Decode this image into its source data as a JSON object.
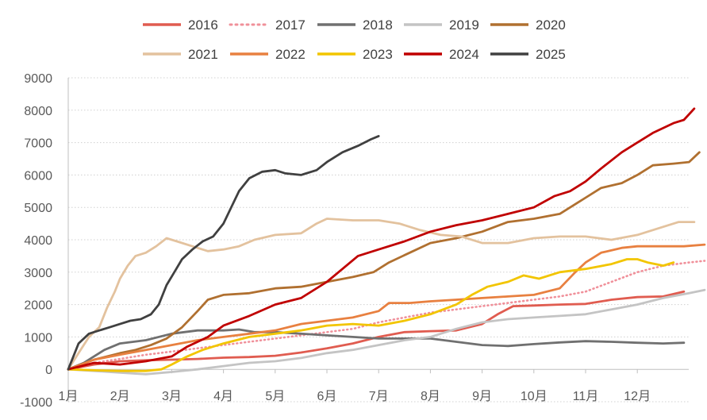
{
  "chart_data": {
    "type": "line",
    "title": "",
    "xlabel": "",
    "ylabel": "",
    "ylim": [
      -1000,
      9000
    ],
    "y_ticks": [
      -1000,
      0,
      1000,
      2000,
      3000,
      4000,
      5000,
      6000,
      7000,
      8000,
      9000
    ],
    "x_domain": [
      0,
      12.3
    ],
    "x_ticks": [
      {
        "v": 0,
        "label": "1月"
      },
      {
        "v": 1,
        "label": "2月"
      },
      {
        "v": 2,
        "label": "3月"
      },
      {
        "v": 3,
        "label": "4月"
      },
      {
        "v": 4,
        "label": "5月"
      },
      {
        "v": 5,
        "label": "6月"
      },
      {
        "v": 6,
        "label": "7月"
      },
      {
        "v": 7,
        "label": "8月"
      },
      {
        "v": 8,
        "label": "9月"
      },
      {
        "v": 9,
        "label": "10月"
      },
      {
        "v": 10,
        "label": "11月"
      },
      {
        "v": 11,
        "label": "12月"
      }
    ],
    "grid": "horizontal-dotted",
    "legend_position": "top",
    "series": [
      {
        "name": "2016",
        "color": "#e05c50",
        "dash": false,
        "width": 2.8,
        "points": [
          [
            0,
            0
          ],
          [
            0.5,
            150
          ],
          [
            1,
            250
          ],
          [
            1.5,
            280
          ],
          [
            2,
            300
          ],
          [
            2.5,
            320
          ],
          [
            3,
            360
          ],
          [
            3.5,
            380
          ],
          [
            4,
            420
          ],
          [
            4.5,
            520
          ],
          [
            5,
            650
          ],
          [
            5.5,
            800
          ],
          [
            6,
            1000
          ],
          [
            6.5,
            1150
          ],
          [
            7,
            1180
          ],
          [
            7.5,
            1200
          ],
          [
            8,
            1400
          ],
          [
            8.3,
            1700
          ],
          [
            8.6,
            1950
          ],
          [
            9,
            1970
          ],
          [
            9.5,
            2000
          ],
          [
            10,
            2020
          ],
          [
            10.5,
            2150
          ],
          [
            11,
            2230
          ],
          [
            11.5,
            2250
          ],
          [
            11.9,
            2400
          ]
        ]
      },
      {
        "name": "2017",
        "color": "#f0909a",
        "dash": true,
        "width": 2.6,
        "points": [
          [
            0,
            0
          ],
          [
            0.5,
            200
          ],
          [
            1,
            320
          ],
          [
            1.5,
            450
          ],
          [
            2,
            550
          ],
          [
            2.5,
            650
          ],
          [
            3,
            750
          ],
          [
            3.5,
            850
          ],
          [
            4,
            950
          ],
          [
            4.5,
            1050
          ],
          [
            5,
            1150
          ],
          [
            5.5,
            1250
          ],
          [
            6,
            1450
          ],
          [
            6.5,
            1600
          ],
          [
            7,
            1750
          ],
          [
            7.5,
            1850
          ],
          [
            8,
            1950
          ],
          [
            8.5,
            2050
          ],
          [
            9,
            2150
          ],
          [
            9.5,
            2250
          ],
          [
            10,
            2400
          ],
          [
            10.5,
            2700
          ],
          [
            11,
            3000
          ],
          [
            11.5,
            3200
          ],
          [
            12,
            3300
          ],
          [
            12.3,
            3350
          ]
        ]
      },
      {
        "name": "2018",
        "color": "#707070",
        "dash": false,
        "width": 2.8,
        "points": [
          [
            0,
            0
          ],
          [
            0.3,
            200
          ],
          [
            0.7,
            600
          ],
          [
            1,
            800
          ],
          [
            1.5,
            900
          ],
          [
            2,
            1100
          ],
          [
            2.5,
            1200
          ],
          [
            3,
            1200
          ],
          [
            3.3,
            1230
          ],
          [
            3.6,
            1150
          ],
          [
            4,
            1150
          ],
          [
            4.5,
            1100
          ],
          [
            5,
            1050
          ],
          [
            5.5,
            1000
          ],
          [
            6,
            950
          ],
          [
            6.5,
            950
          ],
          [
            7,
            950
          ],
          [
            7.5,
            850
          ],
          [
            8,
            750
          ],
          [
            8.5,
            720
          ],
          [
            9,
            780
          ],
          [
            9.5,
            830
          ],
          [
            10,
            870
          ],
          [
            10.5,
            850
          ],
          [
            11,
            820
          ],
          [
            11.5,
            800
          ],
          [
            11.9,
            820
          ]
        ]
      },
      {
        "name": "2019",
        "color": "#c4c4c4",
        "dash": false,
        "width": 2.8,
        "points": [
          [
            0,
            0
          ],
          [
            0.5,
            -50
          ],
          [
            1,
            -100
          ],
          [
            1.5,
            -150
          ],
          [
            2,
            -80
          ],
          [
            2.5,
            0
          ],
          [
            3,
            100
          ],
          [
            3.5,
            200
          ],
          [
            4,
            250
          ],
          [
            4.5,
            350
          ],
          [
            5,
            500
          ],
          [
            5.5,
            600
          ],
          [
            6,
            750
          ],
          [
            6.5,
            900
          ],
          [
            7,
            1000
          ],
          [
            7.5,
            1250
          ],
          [
            8,
            1450
          ],
          [
            8.5,
            1550
          ],
          [
            9,
            1600
          ],
          [
            9.5,
            1650
          ],
          [
            10,
            1700
          ],
          [
            10.5,
            1850
          ],
          [
            11,
            2000
          ],
          [
            11.5,
            2200
          ],
          [
            12,
            2350
          ],
          [
            12.3,
            2450
          ]
        ]
      },
      {
        "name": "2020",
        "color": "#b07030",
        "dash": false,
        "width": 2.8,
        "points": [
          [
            0,
            0
          ],
          [
            0.5,
            300
          ],
          [
            1,
            500
          ],
          [
            1.3,
            600
          ],
          [
            1.6,
            750
          ],
          [
            1.9,
            950
          ],
          [
            2.2,
            1300
          ],
          [
            2.5,
            1800
          ],
          [
            2.7,
            2150
          ],
          [
            3,
            2300
          ],
          [
            3.5,
            2350
          ],
          [
            4,
            2500
          ],
          [
            4.5,
            2550
          ],
          [
            5,
            2700
          ],
          [
            5.5,
            2850
          ],
          [
            5.9,
            3000
          ],
          [
            6.2,
            3300
          ],
          [
            6.6,
            3600
          ],
          [
            7,
            3900
          ],
          [
            7.5,
            4050
          ],
          [
            8,
            4250
          ],
          [
            8.5,
            4550
          ],
          [
            9,
            4650
          ],
          [
            9.5,
            4800
          ],
          [
            10,
            5300
          ],
          [
            10.3,
            5600
          ],
          [
            10.7,
            5750
          ],
          [
            11,
            6000
          ],
          [
            11.3,
            6300
          ],
          [
            11.7,
            6350
          ],
          [
            12,
            6400
          ],
          [
            12.2,
            6700
          ]
        ]
      },
      {
        "name": "2021",
        "color": "#e3c29e",
        "dash": false,
        "width": 2.8,
        "points": [
          [
            0,
            0
          ],
          [
            0.2,
            500
          ],
          [
            0.4,
            1000
          ],
          [
            0.6,
            1300
          ],
          [
            0.75,
            1900
          ],
          [
            0.9,
            2400
          ],
          [
            1,
            2800
          ],
          [
            1.15,
            3200
          ],
          [
            1.3,
            3500
          ],
          [
            1.5,
            3600
          ],
          [
            1.7,
            3800
          ],
          [
            1.9,
            4050
          ],
          [
            2.1,
            3950
          ],
          [
            2.4,
            3800
          ],
          [
            2.7,
            3650
          ],
          [
            3,
            3700
          ],
          [
            3.3,
            3800
          ],
          [
            3.6,
            4000
          ],
          [
            4,
            4150
          ],
          [
            4.5,
            4200
          ],
          [
            4.8,
            4500
          ],
          [
            5,
            4650
          ],
          [
            5.5,
            4600
          ],
          [
            6,
            4600
          ],
          [
            6.4,
            4500
          ],
          [
            6.8,
            4300
          ],
          [
            7.2,
            4150
          ],
          [
            7.6,
            4100
          ],
          [
            8,
            3900
          ],
          [
            8.5,
            3900
          ],
          [
            9,
            4050
          ],
          [
            9.5,
            4100
          ],
          [
            10,
            4100
          ],
          [
            10.5,
            4000
          ],
          [
            11,
            4150
          ],
          [
            11.5,
            4400
          ],
          [
            11.8,
            4550
          ],
          [
            12.1,
            4550
          ]
        ]
      },
      {
        "name": "2022",
        "color": "#e88040",
        "dash": false,
        "width": 2.8,
        "points": [
          [
            0,
            0
          ],
          [
            0.5,
            300
          ],
          [
            1,
            450
          ],
          [
            1.5,
            600
          ],
          [
            2,
            750
          ],
          [
            2.5,
            900
          ],
          [
            3,
            1000
          ],
          [
            3.5,
            1100
          ],
          [
            4,
            1200
          ],
          [
            4.5,
            1400
          ],
          [
            5,
            1500
          ],
          [
            5.5,
            1600
          ],
          [
            6,
            1800
          ],
          [
            6.2,
            2050
          ],
          [
            6.6,
            2050
          ],
          [
            7,
            2100
          ],
          [
            7.5,
            2150
          ],
          [
            8,
            2200
          ],
          [
            8.5,
            2250
          ],
          [
            9,
            2300
          ],
          [
            9.5,
            2500
          ],
          [
            9.8,
            3000
          ],
          [
            10,
            3300
          ],
          [
            10.3,
            3600
          ],
          [
            10.7,
            3750
          ],
          [
            11,
            3800
          ],
          [
            11.5,
            3800
          ],
          [
            11.9,
            3800
          ],
          [
            12.3,
            3850
          ]
        ]
      },
      {
        "name": "2023",
        "color": "#f2c500",
        "dash": false,
        "width": 2.8,
        "points": [
          [
            0,
            0
          ],
          [
            0.5,
            -30
          ],
          [
            1,
            -50
          ],
          [
            1.5,
            -50
          ],
          [
            1.8,
            0
          ],
          [
            2,
            150
          ],
          [
            2.3,
            400
          ],
          [
            2.6,
            600
          ],
          [
            3,
            800
          ],
          [
            3.5,
            1000
          ],
          [
            4,
            1100
          ],
          [
            4.5,
            1200
          ],
          [
            5,
            1350
          ],
          [
            5.5,
            1400
          ],
          [
            6,
            1350
          ],
          [
            6.5,
            1500
          ],
          [
            7,
            1700
          ],
          [
            7.5,
            2000
          ],
          [
            7.8,
            2300
          ],
          [
            8.1,
            2550
          ],
          [
            8.5,
            2700
          ],
          [
            8.8,
            2900
          ],
          [
            9.1,
            2800
          ],
          [
            9.5,
            3000
          ],
          [
            10,
            3100
          ],
          [
            10.5,
            3250
          ],
          [
            10.8,
            3400
          ],
          [
            11,
            3400
          ],
          [
            11.2,
            3300
          ],
          [
            11.5,
            3200
          ],
          [
            11.7,
            3300
          ]
        ]
      },
      {
        "name": "2024",
        "color": "#c00000",
        "dash": false,
        "width": 2.8,
        "points": [
          [
            0,
            0
          ],
          [
            0.5,
            200
          ],
          [
            1,
            150
          ],
          [
            1.5,
            250
          ],
          [
            2,
            400
          ],
          [
            2.3,
            700
          ],
          [
            2.7,
            1000
          ],
          [
            3,
            1350
          ],
          [
            3.5,
            1650
          ],
          [
            4,
            2000
          ],
          [
            4.5,
            2200
          ],
          [
            5,
            2700
          ],
          [
            5.3,
            3100
          ],
          [
            5.6,
            3500
          ],
          [
            6,
            3700
          ],
          [
            6.5,
            3950
          ],
          [
            7,
            4250
          ],
          [
            7.5,
            4450
          ],
          [
            8,
            4600
          ],
          [
            8.5,
            4800
          ],
          [
            9,
            5000
          ],
          [
            9.4,
            5350
          ],
          [
            9.7,
            5500
          ],
          [
            10,
            5800
          ],
          [
            10.3,
            6200
          ],
          [
            10.7,
            6700
          ],
          [
            11,
            7000
          ],
          [
            11.3,
            7300
          ],
          [
            11.7,
            7600
          ],
          [
            11.9,
            7700
          ],
          [
            12.1,
            8050
          ]
        ]
      },
      {
        "name": "2025",
        "color": "#404040",
        "dash": false,
        "width": 2.8,
        "points": [
          [
            0,
            0
          ],
          [
            0.2,
            800
          ],
          [
            0.4,
            1100
          ],
          [
            0.6,
            1200
          ],
          [
            0.8,
            1300
          ],
          [
            1,
            1400
          ],
          [
            1.2,
            1500
          ],
          [
            1.4,
            1550
          ],
          [
            1.6,
            1700
          ],
          [
            1.75,
            2000
          ],
          [
            1.9,
            2600
          ],
          [
            2.05,
            3000
          ],
          [
            2.2,
            3400
          ],
          [
            2.4,
            3700
          ],
          [
            2.6,
            3950
          ],
          [
            2.8,
            4100
          ],
          [
            3,
            4500
          ],
          [
            3.15,
            5000
          ],
          [
            3.3,
            5500
          ],
          [
            3.5,
            5900
          ],
          [
            3.75,
            6100
          ],
          [
            4,
            6150
          ],
          [
            4.2,
            6050
          ],
          [
            4.5,
            6000
          ],
          [
            4.8,
            6150
          ],
          [
            5,
            6400
          ],
          [
            5.3,
            6700
          ],
          [
            5.6,
            6900
          ],
          [
            5.85,
            7100
          ],
          [
            6,
            7200
          ]
        ]
      }
    ]
  }
}
